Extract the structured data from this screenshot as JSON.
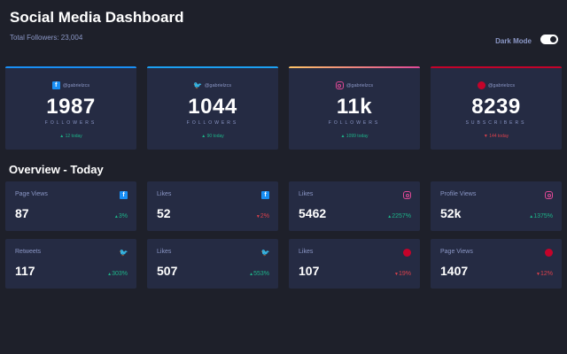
{
  "header": {
    "title": "Social Media Dashboard",
    "total_followers": "Total Followers: 23,004",
    "dark_mode_label": "Dark Mode",
    "dark_mode_on": true
  },
  "colors": {
    "facebook": "#198ff5",
    "twitter": "#1ca0f2",
    "instagram_start": "#fdc468",
    "instagram_end": "#df4996",
    "youtube": "#c4032a",
    "up": "#1db489",
    "down": "#dc414c"
  },
  "followers": [
    {
      "platform": "facebook",
      "icon": "facebook-icon",
      "handle": "@gabrielzcs",
      "count": "1987",
      "label": "FOLLOWERS",
      "today": "12 today",
      "trend": "up"
    },
    {
      "platform": "twitter",
      "icon": "twitter-icon",
      "handle": "@gabrielzcs",
      "count": "1044",
      "label": "FOLLOWERS",
      "today": "90 today",
      "trend": "up"
    },
    {
      "platform": "instagram",
      "icon": "instagram-icon",
      "handle": "@gabrielzcs",
      "count": "11k",
      "label": "FOLLOWERS",
      "today": "1099 today",
      "trend": "up"
    },
    {
      "platform": "youtube",
      "icon": "youtube-icon",
      "handle": "@gabrielzcs",
      "count": "8239",
      "label": "SUBSCRIBERS",
      "today": "144 today",
      "trend": "down"
    }
  ],
  "overview": {
    "title": "Overview - Today",
    "cards": [
      {
        "title": "Page Views",
        "platform": "facebook",
        "value": "87",
        "change": "3%",
        "trend": "up"
      },
      {
        "title": "Likes",
        "platform": "facebook",
        "value": "52",
        "change": "2%",
        "trend": "down"
      },
      {
        "title": "Likes",
        "platform": "instagram",
        "value": "5462",
        "change": "2257%",
        "trend": "up"
      },
      {
        "title": "Profile Views",
        "platform": "instagram",
        "value": "52k",
        "change": "1375%",
        "trend": "up"
      },
      {
        "title": "Retweets",
        "platform": "twitter",
        "value": "117",
        "change": "303%",
        "trend": "up"
      },
      {
        "title": "Likes",
        "platform": "twitter",
        "value": "507",
        "change": "553%",
        "trend": "up"
      },
      {
        "title": "Likes",
        "platform": "youtube",
        "value": "107",
        "change": "19%",
        "trend": "down"
      },
      {
        "title": "Page Views",
        "platform": "youtube",
        "value": "1407",
        "change": "12%",
        "trend": "down"
      }
    ]
  }
}
